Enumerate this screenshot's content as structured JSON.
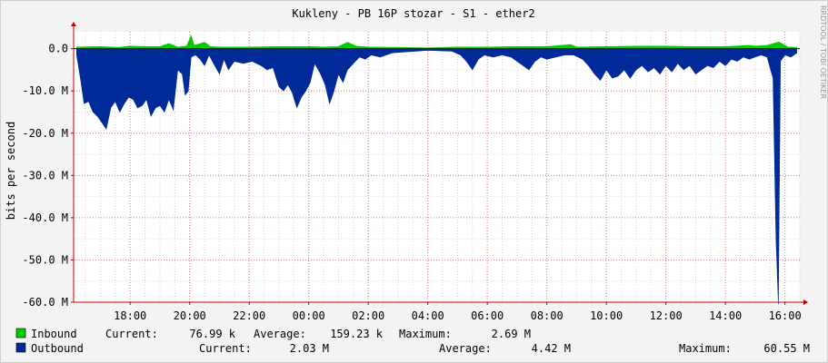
{
  "chart_data": {
    "type": "area",
    "title": "Kukleny - PB 16P stozar - S1 - ether2",
    "ylabel": "bits per second",
    "watermark": "RRDTOOL / TOBI OETIKER",
    "ylim": [
      -60000000,
      4000000
    ],
    "y_ticks": [
      {
        "value": 0,
        "label": "0.0"
      },
      {
        "value": -10000000,
        "label": "-10.0 M"
      },
      {
        "value": -20000000,
        "label": "-20.0 M"
      },
      {
        "value": -30000000,
        "label": "-30.0 M"
      },
      {
        "value": -40000000,
        "label": "-40.0 M"
      },
      {
        "value": -50000000,
        "label": "-50.0 M"
      },
      {
        "value": -60000000,
        "label": "-60.0 M"
      }
    ],
    "x_ticks": [
      "18:00",
      "20:00",
      "22:00",
      "00:00",
      "02:00",
      "04:00",
      "06:00",
      "08:00",
      "10:00",
      "12:00",
      "14:00",
      "16:00"
    ],
    "x_tick_hours": [
      18,
      20,
      22,
      24,
      26,
      28,
      30,
      32,
      34,
      36,
      38,
      40
    ],
    "x_range_hours": [
      16.1,
      40.5
    ],
    "grid": true,
    "legend_position": "bottom",
    "series": [
      {
        "name": "Inbound",
        "color": "#00cc00",
        "unit": "bits per second",
        "points": [
          [
            16.2,
            0.4
          ],
          [
            17.0,
            0.5
          ],
          [
            17.6,
            0.3
          ],
          [
            18.0,
            0.6
          ],
          [
            18.6,
            0.5
          ],
          [
            19.0,
            0.5
          ],
          [
            19.3,
            1.2
          ],
          [
            19.6,
            0.4
          ],
          [
            19.9,
            0.6
          ],
          [
            20.05,
            3.1
          ],
          [
            20.15,
            0.8
          ],
          [
            20.5,
            1.5
          ],
          [
            20.7,
            0.5
          ],
          [
            21.0,
            0.4
          ],
          [
            22.0,
            0.4
          ],
          [
            23.0,
            0.5
          ],
          [
            24.0,
            0.5
          ],
          [
            24.5,
            0.4
          ],
          [
            25.0,
            0.5
          ],
          [
            25.3,
            1.5
          ],
          [
            25.6,
            0.6
          ],
          [
            26.0,
            0.4
          ],
          [
            27.0,
            0.3
          ],
          [
            28.0,
            0.2
          ],
          [
            29.0,
            0.4
          ],
          [
            30.0,
            0.4
          ],
          [
            31.0,
            0.5
          ],
          [
            32.0,
            0.5
          ],
          [
            32.8,
            1.0
          ],
          [
            33.0,
            0.4
          ],
          [
            34.0,
            0.5
          ],
          [
            35.0,
            0.6
          ],
          [
            36.0,
            0.6
          ],
          [
            37.0,
            0.5
          ],
          [
            38.0,
            0.5
          ],
          [
            38.8,
            0.8
          ],
          [
            39.0,
            0.6
          ],
          [
            39.4,
            0.8
          ],
          [
            39.8,
            1.6
          ],
          [
            40.1,
            0.4
          ],
          [
            40.4,
            0.3
          ]
        ]
      },
      {
        "name": "Outbound",
        "color": "#002a97",
        "unit": "bits per second",
        "points": [
          [
            16.2,
            -1.5
          ],
          [
            16.35,
            -8.0
          ],
          [
            16.45,
            -13.0
          ],
          [
            16.6,
            -12.5
          ],
          [
            16.75,
            -15.0
          ],
          [
            16.9,
            -16.0
          ],
          [
            17.05,
            -17.5
          ],
          [
            17.2,
            -19.0
          ],
          [
            17.35,
            -14.0
          ],
          [
            17.5,
            -12.5
          ],
          [
            17.65,
            -15.0
          ],
          [
            17.8,
            -13.0
          ],
          [
            17.95,
            -11.5
          ],
          [
            18.1,
            -12.0
          ],
          [
            18.25,
            -14.0
          ],
          [
            18.4,
            -13.5
          ],
          [
            18.55,
            -12.0
          ],
          [
            18.7,
            -16.0
          ],
          [
            18.85,
            -14.0
          ],
          [
            19.0,
            -13.5
          ],
          [
            19.15,
            -15.0
          ],
          [
            19.3,
            -12.0
          ],
          [
            19.45,
            -14.5
          ],
          [
            19.6,
            -5.0
          ],
          [
            19.75,
            -6.0
          ],
          [
            19.85,
            -11.0
          ],
          [
            19.95,
            -10.0
          ],
          [
            20.05,
            -2.0
          ],
          [
            20.2,
            -1.5
          ],
          [
            20.35,
            -2.5
          ],
          [
            20.5,
            -4.0
          ],
          [
            20.65,
            -1.5
          ],
          [
            20.8,
            -3.5
          ],
          [
            21.0,
            -6.0
          ],
          [
            21.15,
            -2.5
          ],
          [
            21.3,
            -5.0
          ],
          [
            21.5,
            -3.0
          ],
          [
            21.8,
            -3.5
          ],
          [
            22.1,
            -3.0
          ],
          [
            22.4,
            -4.0
          ],
          [
            22.6,
            -5.0
          ],
          [
            22.8,
            -4.5
          ],
          [
            23.0,
            -9.0
          ],
          [
            23.15,
            -10.0
          ],
          [
            23.3,
            -8.5
          ],
          [
            23.45,
            -10.5
          ],
          [
            23.6,
            -14.0
          ],
          [
            23.75,
            -11.5
          ],
          [
            23.9,
            -10.0
          ],
          [
            24.05,
            -8.0
          ],
          [
            24.2,
            -3.5
          ],
          [
            24.4,
            -6.0
          ],
          [
            24.55,
            -8.5
          ],
          [
            24.7,
            -13.0
          ],
          [
            24.85,
            -10.0
          ],
          [
            25.0,
            -6.0
          ],
          [
            25.15,
            -8.0
          ],
          [
            25.3,
            -5.0
          ],
          [
            25.5,
            -3.5
          ],
          [
            25.7,
            -2.0
          ],
          [
            25.9,
            -2.5
          ],
          [
            26.1,
            -1.5
          ],
          [
            26.4,
            -2.0
          ],
          [
            26.8,
            -1.0
          ],
          [
            27.2,
            -0.8
          ],
          [
            27.6,
            -0.6
          ],
          [
            28.0,
            -0.4
          ],
          [
            28.4,
            -0.5
          ],
          [
            28.8,
            -0.6
          ],
          [
            29.1,
            -1.5
          ],
          [
            29.3,
            -3.0
          ],
          [
            29.5,
            -5.0
          ],
          [
            29.7,
            -2.5
          ],
          [
            29.9,
            -1.5
          ],
          [
            30.2,
            -2.0
          ],
          [
            30.5,
            -1.5
          ],
          [
            30.8,
            -2.0
          ],
          [
            31.0,
            -3.0
          ],
          [
            31.2,
            -4.0
          ],
          [
            31.4,
            -5.0
          ],
          [
            31.6,
            -3.0
          ],
          [
            31.8,
            -2.0
          ],
          [
            32.0,
            -2.5
          ],
          [
            32.3,
            -2.0
          ],
          [
            32.6,
            -1.5
          ],
          [
            32.9,
            -1.5
          ],
          [
            33.2,
            -2.5
          ],
          [
            33.4,
            -4.0
          ],
          [
            33.6,
            -6.0
          ],
          [
            33.8,
            -7.5
          ],
          [
            34.0,
            -5.0
          ],
          [
            34.2,
            -7.0
          ],
          [
            34.4,
            -6.5
          ],
          [
            34.6,
            -5.0
          ],
          [
            34.8,
            -7.0
          ],
          [
            35.0,
            -5.0
          ],
          [
            35.2,
            -4.0
          ],
          [
            35.4,
            -5.5
          ],
          [
            35.6,
            -4.5
          ],
          [
            35.8,
            -6.0
          ],
          [
            36.0,
            -4.0
          ],
          [
            36.2,
            -5.5
          ],
          [
            36.4,
            -3.5
          ],
          [
            36.6,
            -5.0
          ],
          [
            36.8,
            -4.0
          ],
          [
            37.0,
            -6.0
          ],
          [
            37.2,
            -5.0
          ],
          [
            37.4,
            -4.0
          ],
          [
            37.6,
            -4.5
          ],
          [
            37.8,
            -3.0
          ],
          [
            38.0,
            -4.0
          ],
          [
            38.2,
            -2.5
          ],
          [
            38.4,
            -3.0
          ],
          [
            38.6,
            -2.0
          ],
          [
            38.8,
            -2.5
          ],
          [
            39.0,
            -2.0
          ],
          [
            39.2,
            -1.5
          ],
          [
            39.4,
            -2.0
          ],
          [
            39.6,
            -7.0
          ],
          [
            39.7,
            -45.0
          ],
          [
            39.78,
            -60.5
          ],
          [
            39.85,
            -3.0
          ],
          [
            40.0,
            -1.5
          ],
          [
            40.2,
            -2.0
          ],
          [
            40.4,
            -1.0
          ]
        ]
      }
    ]
  },
  "legend": {
    "inbound": {
      "name": "Inbound",
      "current_label": "Current:",
      "current_value": "76.99 k",
      "average_label": "Average:",
      "average_value": "159.23 k",
      "maximum_label": "Maximum:",
      "maximum_value": "2.69 M"
    },
    "outbound": {
      "name": "Outbound",
      "current_label": "Current:",
      "current_value": "2.03 M",
      "average_label": "Average:",
      "average_value": "4.42 M",
      "maximum_label": "Maximum:",
      "maximum_value": "60.55 M"
    }
  }
}
